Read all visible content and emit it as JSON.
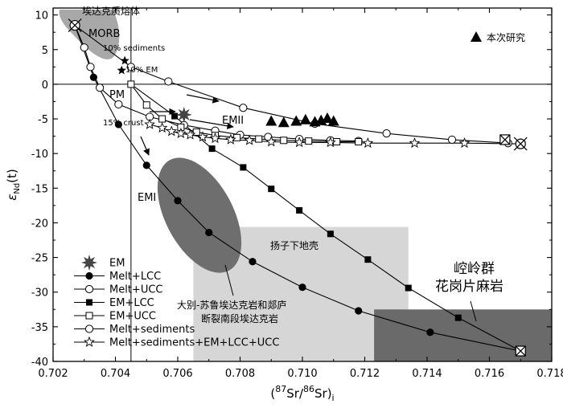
{
  "chart_data": {
    "type": "scatter",
    "xlabel": "(87Sr/86Sr)i",
    "xlabel_parts": {
      "open": "(",
      "sup1": "87",
      "sr1": "Sr/",
      "sup2": "86",
      "sr2": "Sr)",
      "sub": "i"
    },
    "ylabel": "εNd(t)",
    "ylabel_parts": {
      "eps": "ε",
      "sub": "Nd",
      "rest": "(t)"
    },
    "xlim": [
      0.702,
      0.718
    ],
    "ylim": [
      -40,
      11
    ],
    "xticks": [
      "0.702",
      "0.704",
      "0.706",
      "0.708",
      "0.710",
      "0.712",
      "0.714",
      "0.716",
      "0.718"
    ],
    "yticks": [
      "10",
      "5",
      "0",
      "-5",
      "-10",
      "-15",
      "-20",
      "-25",
      "-30",
      "-35",
      "-40"
    ],
    "reference_lines": {
      "x": 0.7045,
      "y": 0
    },
    "fields": [
      {
        "name": "埃达克质熔体",
        "shape": "blob",
        "color": "#a8a8a8"
      },
      {
        "name": "扬子下地壳",
        "x": [
          0.7065,
          0.7134
        ],
        "y": [
          -40,
          -20.6
        ],
        "color": "#d6d6d6"
      },
      {
        "name": "大别-苏鲁埃达克岩和郯庐断裂南段埃达克岩",
        "name_lines": [
          "大别-苏鲁埃达克岩和郯庐",
          "断裂南段埃达克岩"
        ],
        "shape": "ellipse",
        "color": "#6e6e6e"
      },
      {
        "name": "崆岭群花岗片麻岩",
        "name_lines": [
          "崆岭群",
          "花岗片麻岩"
        ],
        "x": [
          0.7123,
          0.718
        ],
        "y": [
          -40,
          -32.5
        ],
        "color": "#6a6a6a"
      }
    ],
    "endmembers": [
      {
        "name": "MORB",
        "x": 0.7027,
        "y": 8.5
      },
      {
        "name": "PM",
        "x": 0.7045,
        "y": 0.0
      },
      {
        "name": "EMI",
        "x": 0.7051,
        "y": -13.5
      },
      {
        "name": "EMII",
        "x": 0.7075,
        "y": -5.0
      }
    ],
    "annotations": [
      "10% sediments",
      "10% EM",
      "15% crust"
    ],
    "series": [
      {
        "name": "Melt+LCC",
        "marker": "filled-circle",
        "x": [
          0.7027,
          0.7033,
          0.7041,
          0.705,
          0.706,
          0.707,
          0.7084,
          0.71,
          0.7118,
          0.7141,
          0.717
        ],
        "y": [
          8.5,
          1.0,
          -5.8,
          -11.7,
          -16.8,
          -21.4,
          -25.6,
          -29.3,
          -32.7,
          -35.8,
          -38.5
        ]
      },
      {
        "name": "Melt+UCC",
        "marker": "open-circle",
        "x": [
          0.7027,
          0.703,
          0.7032,
          0.7035,
          0.7041,
          0.7051,
          0.7062,
          0.7072,
          0.708,
          0.7089,
          0.7099,
          0.7109,
          0.7118
        ],
        "y": [
          8.5,
          5.3,
          2.5,
          -0.5,
          -2.9,
          -4.7,
          -5.9,
          -6.7,
          -7.3,
          -7.6,
          -7.9,
          -8.1,
          -8.2
        ]
      },
      {
        "name": "EM+LCC",
        "marker": "filled-square",
        "x": [
          0.7045,
          0.7059,
          0.7071,
          0.7081,
          0.709,
          0.7099,
          0.7109,
          0.7121,
          0.7134,
          0.715,
          0.717
        ],
        "y": [
          0.0,
          -4.6,
          -9.3,
          -12.0,
          -15.1,
          -18.2,
          -21.6,
          -25.3,
          -29.4,
          -33.7,
          -38.5
        ]
      },
      {
        "name": "EM+UCC",
        "marker": "open-square",
        "x": [
          0.7045,
          0.705,
          0.7055,
          0.7061,
          0.7066,
          0.7072,
          0.7079,
          0.7086,
          0.7094,
          0.7102,
          0.7111,
          0.7118
        ],
        "y": [
          0.0,
          -3.0,
          -5.0,
          -6.2,
          -6.9,
          -7.4,
          -7.7,
          -7.9,
          -8.1,
          -8.2,
          -8.3,
          -8.3
        ]
      },
      {
        "name": "Melt+sediments",
        "marker": "open-circle",
        "x": [
          0.7027,
          0.7045,
          0.7057,
          0.7081,
          0.7104,
          0.7127,
          0.7148,
          0.7166
        ],
        "y": [
          8.5,
          2.5,
          0.4,
          -3.4,
          -5.7,
          -7.1,
          -8.0,
          -8.5
        ]
      },
      {
        "name": "Melt+sediments+EM+LCC+UCC",
        "marker": "open-star",
        "x": [
          0.7051,
          0.7055,
          0.7058,
          0.7061,
          0.7064,
          0.7068,
          0.7072,
          0.7077,
          0.7083,
          0.709,
          0.7099,
          0.7109,
          0.7121,
          0.7136,
          0.7152,
          0.717
        ],
        "y": [
          -5.8,
          -6.3,
          -6.8,
          -7.1,
          -7.3,
          -7.6,
          -7.8,
          -8.0,
          -8.1,
          -8.3,
          -8.4,
          -8.4,
          -8.5,
          -8.5,
          -8.5,
          -8.6
        ]
      },
      {
        "name": "本次研究",
        "marker": "filled-triangle",
        "x": [
          0.709,
          0.7094,
          0.7098,
          0.7101,
          0.7104,
          0.7106,
          0.7108,
          0.711
        ],
        "y": [
          -5.4,
          -5.6,
          -5.4,
          -5.2,
          -5.5,
          -5.3,
          -5.0,
          -5.4
        ]
      }
    ],
    "special_points": [
      {
        "name": "EM",
        "marker": "burst",
        "x": 0.7062,
        "y": -4.4
      },
      {
        "name": "Melt+sediments+EM end",
        "marker": "crossed-circle",
        "x": 0.717,
        "y": -8.6
      },
      {
        "name": "UCC end",
        "marker": "crossed-square",
        "x": 0.7165,
        "y": -8.0
      },
      {
        "name": "LCC end",
        "marker": "crossed-square",
        "x": 0.717,
        "y": -38.5
      },
      {
        "name": "MORB end",
        "marker": "crossed-circle",
        "x": 0.7027,
        "y": 8.5
      },
      {
        "name": "star point",
        "marker": "filled-star",
        "x": 0.7043,
        "y": 3.4
      },
      {
        "name": "star point 2",
        "marker": "filled-star",
        "x": 0.7042,
        "y": 2.0
      }
    ],
    "legend_position": "bottom-left",
    "legend_ordered": [
      "EM",
      "Melt+LCC",
      "Melt+UCC",
      "EM+LCC",
      "EM+UCC",
      "Melt+sediments",
      "Melt+sediments+EM+LCC+UCC"
    ],
    "top_legend": "本次研究"
  }
}
